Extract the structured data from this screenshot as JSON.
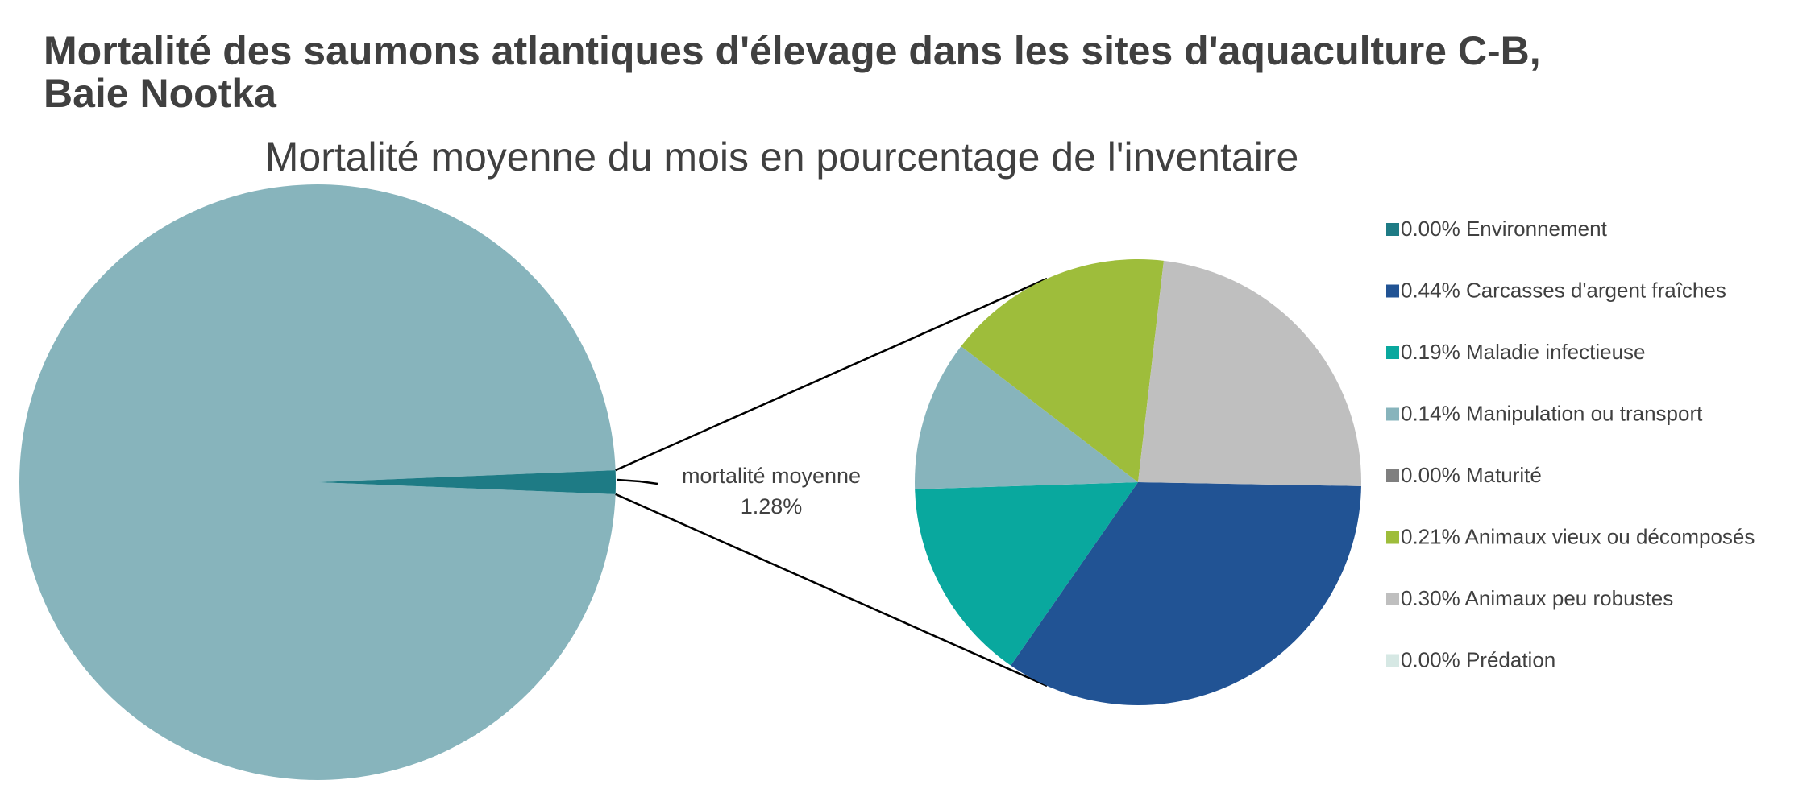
{
  "chart_data": {
    "type": "pie",
    "subtype": "pie-of-pie",
    "title_lines": [
      "Mortalité des saumons atlantiques d'élevage dans les sites d'aquaculture C-B,",
      "Baie Nootka"
    ],
    "subtitle": "Mortalité moyenne du mois en pourcentage de l'inventaire",
    "main_pie": {
      "total_percent": 100,
      "split_value": 1.28,
      "split_label_lines": [
        "mortalité moyenne",
        "1.28%"
      ],
      "rest_color": "#87b4bc",
      "split_color": "#1e7b85"
    },
    "secondary_pie": {
      "slices": [
        {
          "label": "0.00% Environnement",
          "value": 0.0,
          "color": "#1e7b85"
        },
        {
          "label": "0.44% Carcasses d'argent fraîches",
          "value": 0.44,
          "color": "#215394"
        },
        {
          "label": "0.19% Maladie infectieuse",
          "value": 0.19,
          "color": "#09a89e"
        },
        {
          "label": "0.14% Manipulation ou transport",
          "value": 0.14,
          "color": "#87b4bc"
        },
        {
          "label": "0.00% Maturité",
          "value": 0.0,
          "color": "#7f7f7f"
        },
        {
          "label": "0.21% Animaux vieux ou décomposés",
          "value": 0.21,
          "color": "#9ebd3b"
        },
        {
          "label": "0.30% Animaux peu robustes",
          "value": 0.3,
          "color": "#bfbfbf"
        },
        {
          "label": "0.00% Prédation",
          "value": 0.0,
          "color": "#d6e8e4"
        }
      ]
    },
    "legend_position": "right"
  }
}
